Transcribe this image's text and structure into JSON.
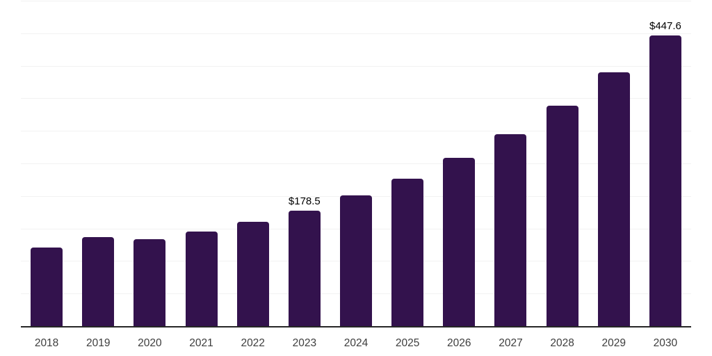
{
  "chart_data": {
    "type": "bar",
    "categories": [
      "2018",
      "2019",
      "2020",
      "2021",
      "2022",
      "2023",
      "2024",
      "2025",
      "2026",
      "2027",
      "2028",
      "2029",
      "2030"
    ],
    "values": [
      121.5,
      137.6,
      134.4,
      146.9,
      161.1,
      178.5,
      202.1,
      227.2,
      259.3,
      296.0,
      339.6,
      391.3,
      447.6
    ],
    "data_labels": [
      "",
      "",
      "",
      "",
      "",
      "$178.5",
      "",
      "",
      "",
      "",
      "",
      "",
      "$447.6"
    ],
    "title": "",
    "xlabel": "",
    "ylabel": "",
    "ylim": [
      0,
      500
    ],
    "gridline_step": 50,
    "grid": "horizontal-only",
    "y_tick_labels_visible": false,
    "legend_position": "none",
    "colors": {
      "bar": "#33124D",
      "axis_line": "#262626",
      "gridline": "#F2F2F2",
      "x_tick_label": "#3D3D3D",
      "data_label": "#000000",
      "background": "#FFFFFF"
    }
  }
}
